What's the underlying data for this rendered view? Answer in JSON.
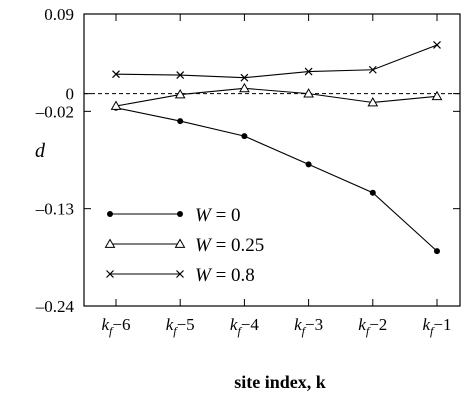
{
  "chart_data": {
    "type": "line",
    "title": "",
    "xlabel": "site index, k",
    "ylabel": "d",
    "categories": [
      "k_f−6",
      "k_f−5",
      "k_f−4",
      "k_f−3",
      "k_f−2",
      "k_f−1"
    ],
    "x_tick_labels": [
      {
        "main": "k",
        "sub": "f",
        "tail": "−6"
      },
      {
        "main": "k",
        "sub": "f",
        "tail": "−5"
      },
      {
        "main": "k",
        "sub": "f",
        "tail": "−4"
      },
      {
        "main": "k",
        "sub": "f",
        "tail": "−3"
      },
      {
        "main": "k",
        "sub": "f",
        "tail": "−2"
      },
      {
        "main": "k",
        "sub": "f",
        "tail": "−1"
      }
    ],
    "ylim": [
      -0.24,
      0.09
    ],
    "y_ticks": [
      {
        "value": 0.09,
        "label": "0.09"
      },
      {
        "value": 0,
        "label": "0"
      },
      {
        "value": -0.02,
        "label": "–0.02"
      },
      {
        "value": -0.13,
        "label": "–0.13"
      },
      {
        "value": -0.24,
        "label": "–0.24"
      }
    ],
    "reference_line": {
      "y": 0,
      "style": "dashed"
    },
    "series": [
      {
        "name": "W = 0",
        "name_var": "W",
        "name_rest": " = 0",
        "marker": "dot",
        "values": [
          -0.016,
          -0.031,
          -0.048,
          -0.08,
          -0.112,
          -0.178
        ]
      },
      {
        "name": "W = 0.25",
        "name_var": "W",
        "name_rest": " = 0.25",
        "marker": "triangle",
        "values": [
          -0.014,
          -0.001,
          0.006,
          0.0,
          -0.01,
          -0.003
        ]
      },
      {
        "name": "W = 0.8",
        "name_var": "W",
        "name_rest": " = 0.8",
        "marker": "cross",
        "values": [
          0.022,
          0.021,
          0.018,
          0.025,
          0.027,
          0.055
        ]
      }
    ],
    "legend_position": "bottom-left",
    "grid": false
  }
}
